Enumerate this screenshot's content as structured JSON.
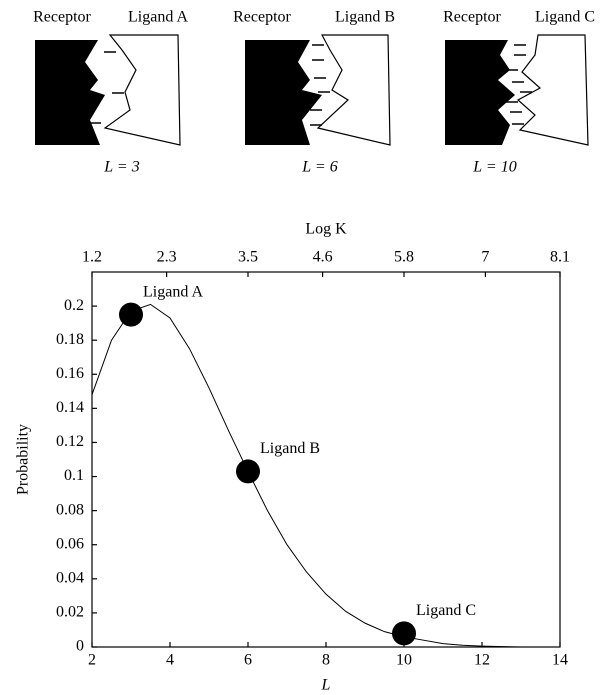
{
  "panels": [
    {
      "receptor": "Receptor",
      "ligand": "Ligand A",
      "label": "L = 3"
    },
    {
      "receptor": "Receptor",
      "ligand": "Ligand B",
      "label": "L = 6"
    },
    {
      "receptor": "Receptor",
      "ligand": "Ligand C",
      "label": "L = 10"
    }
  ],
  "chart_data": {
    "type": "line",
    "xlabel": "L",
    "ylabel": "Probability",
    "x2label": "Log K",
    "x": [
      2,
      2.5,
      3,
      3.5,
      4,
      4.5,
      5,
      5.5,
      6,
      6.5,
      7,
      7.5,
      8,
      8.5,
      9,
      9.5,
      10,
      10.5,
      11,
      11.5,
      12,
      13
    ],
    "values": [
      0.148,
      0.18,
      0.197,
      0.201,
      0.193,
      0.175,
      0.152,
      0.127,
      0.103,
      0.08,
      0.06,
      0.044,
      0.031,
      0.021,
      0.014,
      0.009,
      0.006,
      0.004,
      0.002,
      0.001,
      0.0005,
      0
    ],
    "color": "#000000",
    "points": {
      "x": [
        3,
        6,
        10
      ],
      "values": [
        0.195,
        0.103,
        0.008
      ],
      "labels": [
        "Ligand A",
        "Ligand B",
        "Ligand C"
      ]
    },
    "xlim": [
      2,
      14
    ],
    "xticks": [
      2,
      4,
      6,
      8,
      10,
      12,
      14
    ],
    "ylim": [
      0,
      0.22
    ],
    "yticks": [
      0,
      0.02,
      0.04,
      0.06,
      0.08,
      0.1,
      0.12,
      0.14,
      0.16,
      0.18,
      0.2
    ],
    "x2lim": [
      1.2,
      8.1
    ],
    "x2ticks": [
      1.2,
      2.3,
      3.5,
      4.6,
      5.8,
      7.0,
      8.1
    ]
  }
}
